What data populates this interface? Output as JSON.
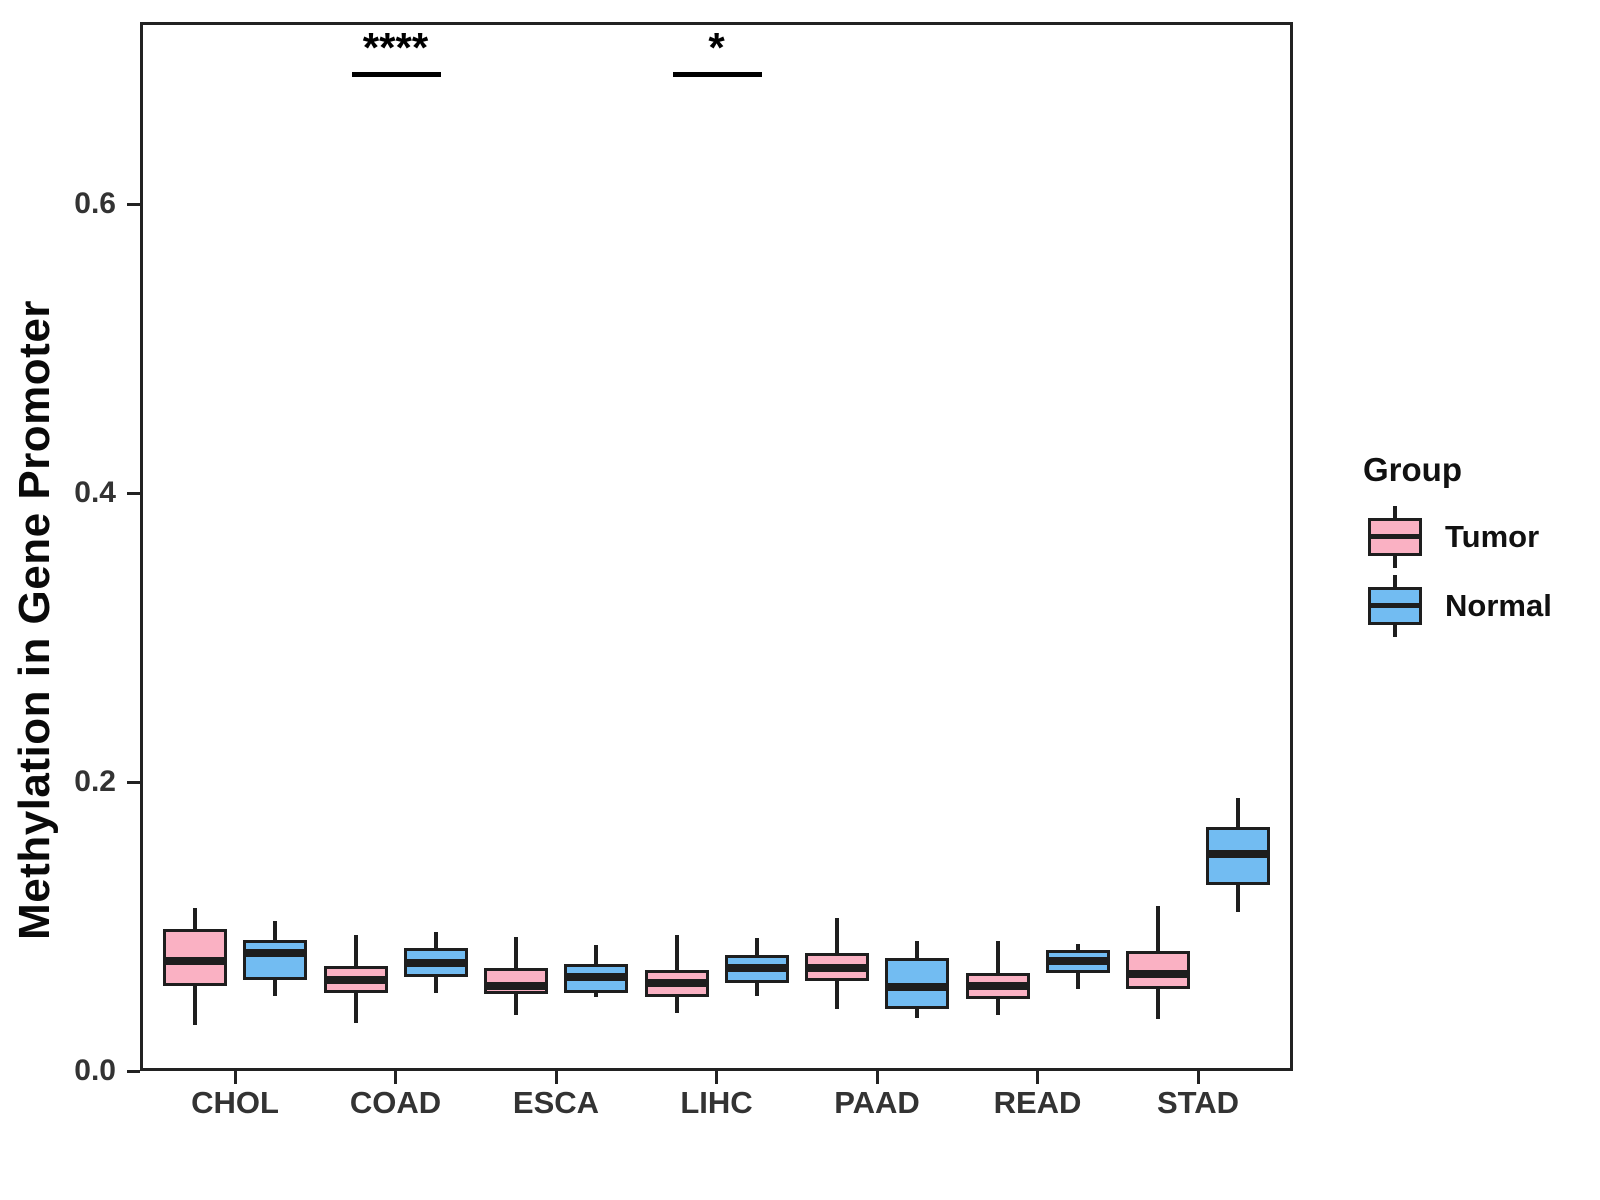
{
  "figure": {
    "y_axis": {
      "title": "Methylation in Gene Promoter",
      "ticks": [
        {
          "label": "0.0",
          "value": 0.0
        },
        {
          "label": "0.2",
          "value": 0.2
        },
        {
          "label": "0.4",
          "value": 0.4
        },
        {
          "label": "0.6",
          "value": 0.6
        }
      ]
    },
    "x_axis": {
      "categories": [
        "CHOL",
        "COAD",
        "ESCA",
        "LIHC",
        "PAAD",
        "READ",
        "STAD"
      ]
    },
    "legend": {
      "title": "Group",
      "items": [
        {
          "label": "Tumor",
          "color": "#FAB1C3"
        },
        {
          "label": "Normal",
          "color": "#72BCF2"
        }
      ]
    }
  },
  "chart_data": {
    "type": "boxplot",
    "title": "",
    "xlabel": "",
    "ylabel": "Methylation in Gene Promoter",
    "ylim": [
      0,
      0.73
    ],
    "y_ticks": [
      0.0,
      0.2,
      0.4,
      0.6
    ],
    "grid": false,
    "legend_position": "right",
    "outline_color": "#1E1E1E",
    "categories": [
      "CHOL",
      "COAD",
      "ESCA",
      "LIHC",
      "PAAD",
      "READ",
      "STAD"
    ],
    "series": [
      {
        "name": "Tumor",
        "color": "#FAB1C3",
        "boxes": [
          {
            "category": "CHOL",
            "whisker_low": 0.032,
            "q1": 0.059,
            "median": 0.076,
            "q3": 0.098,
            "whisker_high": 0.113
          },
          {
            "category": "COAD",
            "whisker_low": 0.033,
            "q1": 0.054,
            "median": 0.063,
            "q3": 0.073,
            "whisker_high": 0.094
          },
          {
            "category": "ESCA",
            "whisker_low": 0.039,
            "q1": 0.053,
            "median": 0.059,
            "q3": 0.071,
            "whisker_high": 0.093
          },
          {
            "category": "LIHC",
            "whisker_low": 0.04,
            "q1": 0.051,
            "median": 0.061,
            "q3": 0.07,
            "whisker_high": 0.094
          },
          {
            "category": "PAAD",
            "whisker_low": 0.043,
            "q1": 0.062,
            "median": 0.071,
            "q3": 0.082,
            "whisker_high": 0.106
          },
          {
            "category": "READ",
            "whisker_low": 0.039,
            "q1": 0.05,
            "median": 0.059,
            "q3": 0.068,
            "whisker_high": 0.09
          },
          {
            "category": "STAD",
            "whisker_low": 0.036,
            "q1": 0.057,
            "median": 0.067,
            "q3": 0.083,
            "whisker_high": 0.114
          }
        ]
      },
      {
        "name": "Normal",
        "color": "#72BCF2",
        "boxes": [
          {
            "category": "CHOL",
            "whisker_low": 0.052,
            "q1": 0.063,
            "median": 0.082,
            "q3": 0.091,
            "whisker_high": 0.104
          },
          {
            "category": "COAD",
            "whisker_low": 0.054,
            "q1": 0.065,
            "median": 0.075,
            "q3": 0.085,
            "whisker_high": 0.096
          },
          {
            "category": "ESCA",
            "whisker_low": 0.051,
            "q1": 0.054,
            "median": 0.065,
            "q3": 0.074,
            "whisker_high": 0.087
          },
          {
            "category": "LIHC",
            "whisker_low": 0.052,
            "q1": 0.061,
            "median": 0.071,
            "q3": 0.08,
            "whisker_high": 0.092
          },
          {
            "category": "PAAD",
            "whisker_low": 0.037,
            "q1": 0.043,
            "median": 0.058,
            "q3": 0.078,
            "whisker_high": 0.09
          },
          {
            "category": "READ",
            "whisker_low": 0.057,
            "q1": 0.068,
            "median": 0.076,
            "q3": 0.084,
            "whisker_high": 0.088
          },
          {
            "category": "STAD",
            "whisker_low": 0.11,
            "q1": 0.129,
            "median": 0.15,
            "q3": 0.169,
            "whisker_high": 0.189
          }
        ]
      }
    ],
    "significance": [
      {
        "category": "COAD",
        "label": "****"
      },
      {
        "category": "LIHC",
        "label": "*"
      }
    ]
  }
}
